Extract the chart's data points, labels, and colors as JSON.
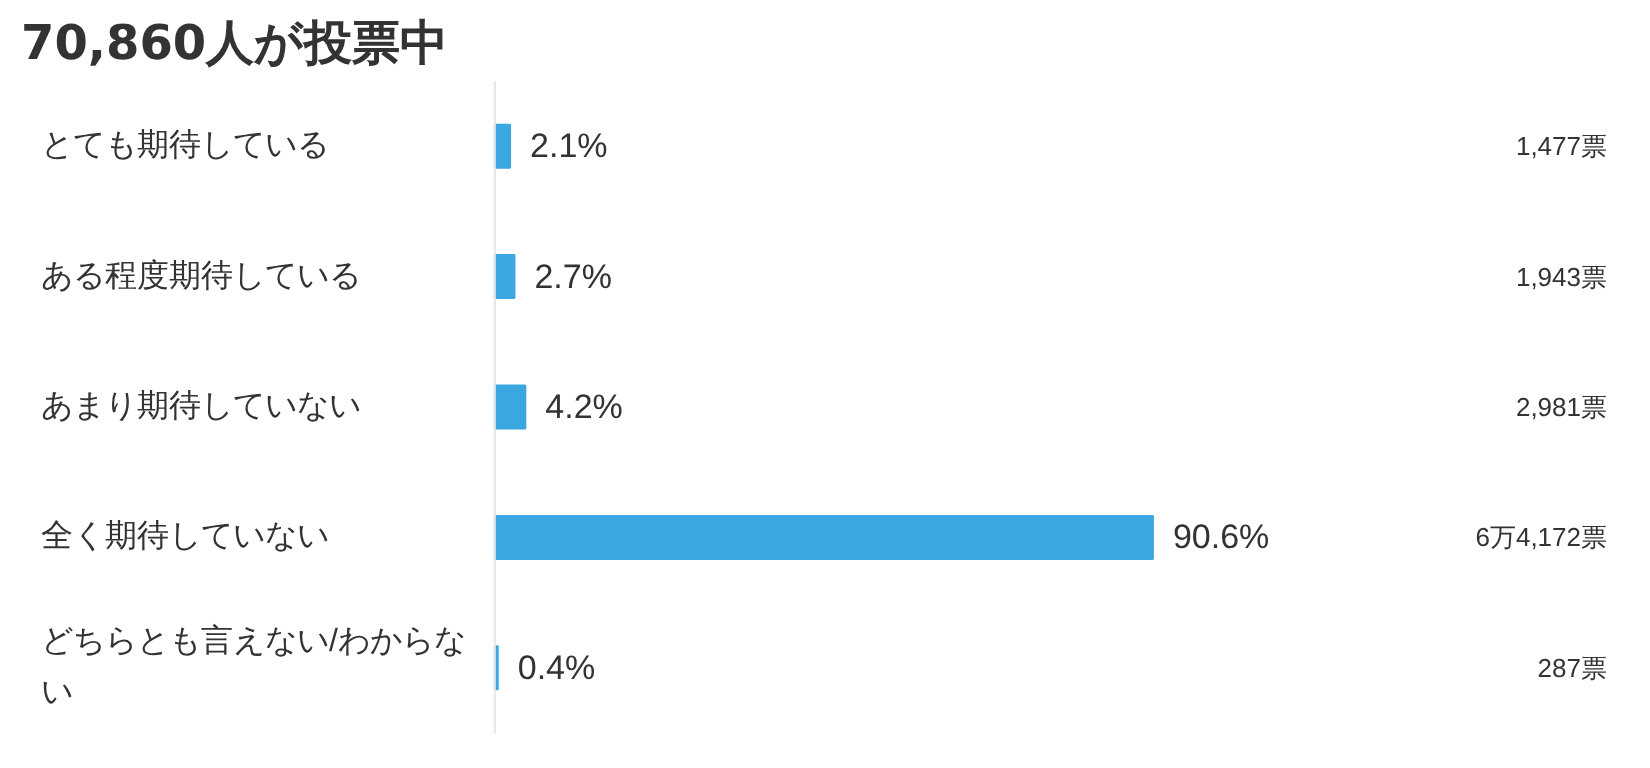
{
  "chart_data": {
    "type": "bar",
    "orientation": "horizontal",
    "title": "70,860人が投票中",
    "categories": [
      "とても期待している",
      "ある程度期待している",
      "あまり期待していない",
      "全く期待していない",
      "どちらとも言えない/わからない"
    ],
    "values": [
      2.1,
      2.7,
      4.2,
      90.6,
      0.4
    ],
    "color": "#3aa7e0",
    "value_labels": [
      "2.1%",
      "2.7%",
      "4.2%",
      "90.6%",
      "0.4%"
    ],
    "annotations": [
      "1,477票",
      "1,943票",
      "2,981票",
      "6万4,172票",
      "287票"
    ],
    "grid": false,
    "tick_labels": false
  }
}
